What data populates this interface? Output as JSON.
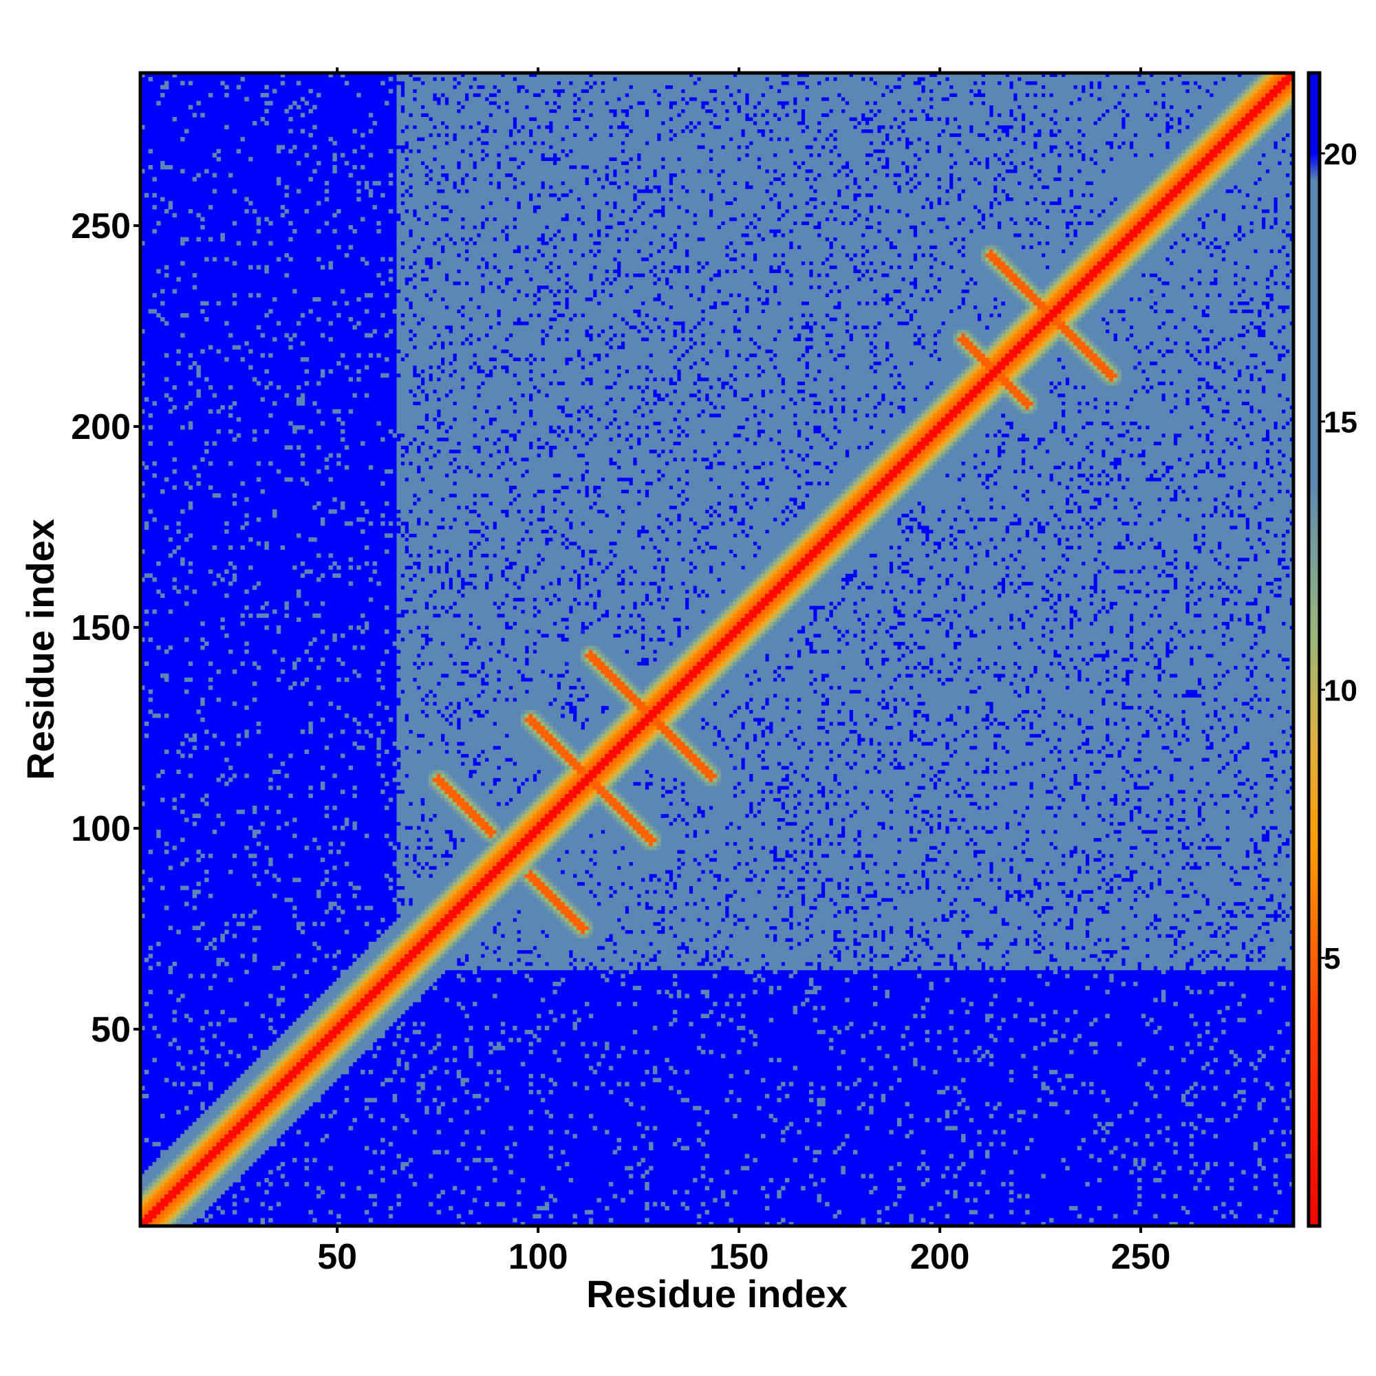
{
  "chart_data": {
    "type": "heatmap",
    "title": "",
    "xlabel": "Residue index",
    "ylabel": "Residue index",
    "xlim": [
      1,
      288
    ],
    "ylim": [
      1,
      288
    ],
    "x_ticks": [
      50,
      100,
      150,
      200,
      250
    ],
    "y_ticks": [
      50,
      100,
      150,
      200,
      250
    ],
    "colorbar": {
      "ticks": [
        5,
        10,
        15,
        20
      ],
      "range": [
        0,
        21.5
      ],
      "colors": [
        {
          "value": 0,
          "color": "#ff0000"
        },
        {
          "value": 4,
          "color": "#ff4500"
        },
        {
          "value": 7,
          "color": "#ff9900"
        },
        {
          "value": 9,
          "color": "#e0b040"
        },
        {
          "value": 11,
          "color": "#9ab87a"
        },
        {
          "value": 14,
          "color": "#5b87b5"
        },
        {
          "value": 19.5,
          "color": "#5b87b5"
        },
        {
          "value": 20,
          "color": "#0000ff"
        }
      ]
    },
    "contact_features": {
      "diagonal": "distance 0 along i = j",
      "antiparallel_segments": [
        {
          "from": [
            75,
            112
          ],
          "to": [
            88,
            99
          ]
        },
        {
          "from": [
            98,
            88
          ],
          "to": [
            111,
            75
          ]
        },
        {
          "from": [
            98,
            127
          ],
          "to": [
            128,
            97
          ]
        },
        {
          "from": [
            113,
            143
          ],
          "to": [
            143,
            113
          ]
        },
        {
          "from": [
            206,
            222
          ],
          "to": [
            222,
            206
          ]
        },
        {
          "from": [
            213,
            243
          ],
          "to": [
            243,
            213
          ]
        }
      ],
      "far_field_boundary": "residues 1-50 mostly beyond 20"
    }
  }
}
